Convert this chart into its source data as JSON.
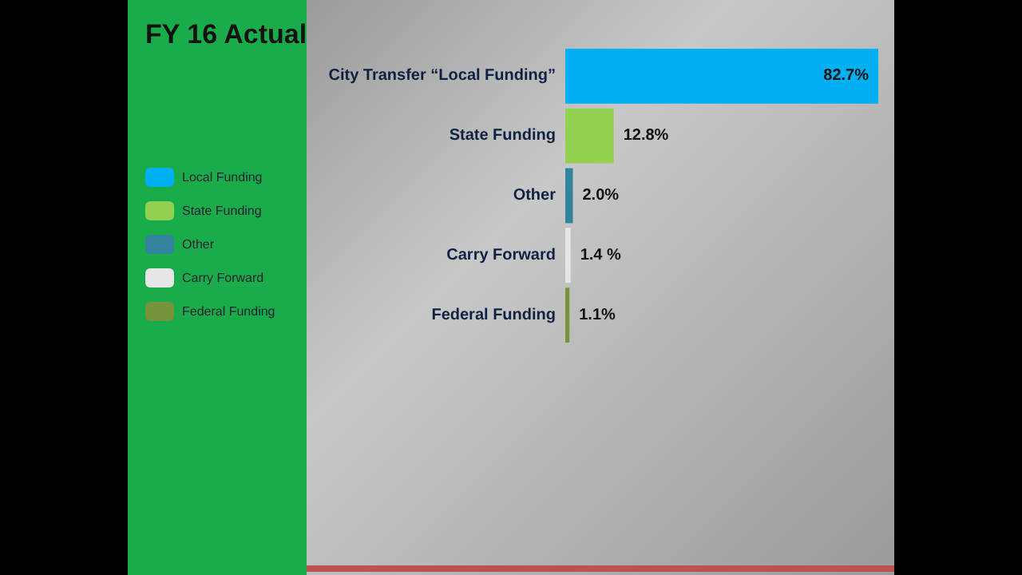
{
  "chart_data": {
    "type": "bar",
    "title": "FY 16 Actual",
    "orientation": "horizontal",
    "stacked": true,
    "legend": "left",
    "categories": [
      "City Transfer “Local Funding”",
      "State Funding",
      "Other",
      "Carry Forward",
      "Federal Funding"
    ],
    "series": [
      {
        "name": "Local Funding",
        "color": "#00b0f0",
        "values": [
          82.7,
          null,
          null,
          null,
          null
        ],
        "value_labels": [
          "82.7%",
          null,
          null,
          null,
          null
        ]
      },
      {
        "name": "State Funding",
        "color": "#92d050",
        "values": [
          null,
          12.8,
          null,
          null,
          null
        ],
        "value_labels": [
          null,
          "12.8%",
          null,
          null,
          null
        ]
      },
      {
        "name": "Other",
        "color": "#31849b",
        "values": [
          null,
          null,
          2.0,
          null,
          null
        ],
        "value_labels": [
          null,
          null,
          "2.0%",
          null,
          null
        ]
      },
      {
        "name": "Carry Forward",
        "color": "#e6e6e6",
        "values": [
          null,
          null,
          null,
          1.4,
          null
        ],
        "value_labels": [
          null,
          null,
          null,
          "1.4 %",
          null
        ]
      },
      {
        "name": "Federal Funding",
        "color": "#77933c",
        "values": [
          null,
          null,
          null,
          null,
          1.1
        ],
        "value_labels": [
          null,
          null,
          null,
          null,
          "1.1%"
        ]
      }
    ]
  }
}
